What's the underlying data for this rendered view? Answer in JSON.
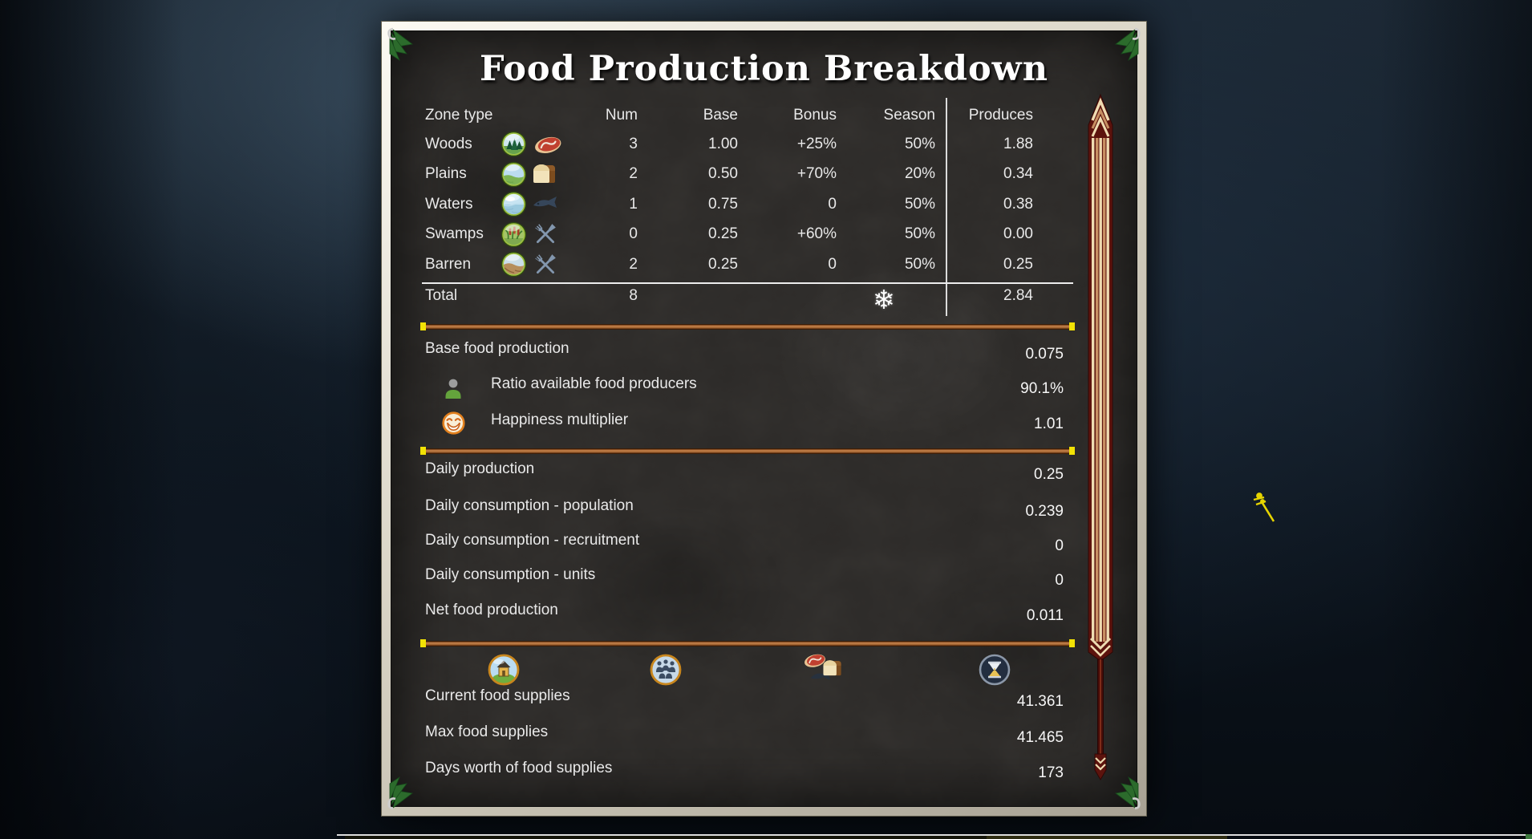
{
  "title": "Food Production Breakdown",
  "table": {
    "headers": {
      "zone": "Zone type",
      "num": "Num",
      "base": "Base",
      "bonus": "Bonus",
      "season": "Season",
      "produces": "Produces"
    },
    "rows": [
      {
        "zone": "Woods",
        "zone_icon": "woods-zone-icon",
        "food_icon": "meat-icon",
        "num": "3",
        "base": "1.00",
        "bonus": "+25%",
        "season": "50%",
        "produces": "1.88"
      },
      {
        "zone": "Plains",
        "zone_icon": "plains-zone-icon",
        "food_icon": "bread-icon",
        "num": "2",
        "base": "0.50",
        "bonus": "+70%",
        "season": "20%",
        "produces": "0.34"
      },
      {
        "zone": "Waters",
        "zone_icon": "waters-zone-icon",
        "food_icon": "fish-icon",
        "num": "1",
        "base": "0.75",
        "bonus": "0",
        "season": "50%",
        "produces": "0.38"
      },
      {
        "zone": "Swamps",
        "zone_icon": "swamps-zone-icon",
        "food_icon": "cutlery-icon",
        "num": "0",
        "base": "0.25",
        "bonus": "+60%",
        "season": "50%",
        "produces": "0.00"
      },
      {
        "zone": "Barren",
        "zone_icon": "barren-zone-icon",
        "food_icon": "cutlery-icon",
        "num": "2",
        "base": "0.25",
        "bonus": "0",
        "season": "50%",
        "produces": "0.25"
      }
    ],
    "total": {
      "label": "Total",
      "num": "8",
      "produces": "2.84",
      "season_glyph": "❄"
    }
  },
  "production": {
    "rows": [
      {
        "label": "Base food production",
        "value": "0.075",
        "icon": ""
      },
      {
        "label": "Ratio available food producers",
        "value": "90.1%",
        "icon": "person-icon"
      },
      {
        "label": "Happiness multiplier",
        "value": "1.01",
        "icon": "happiness-icon"
      }
    ]
  },
  "daily": {
    "rows": [
      {
        "label": "Daily production",
        "value": "0.25"
      },
      {
        "label": "Daily consumption - population",
        "value": "0.239"
      },
      {
        "label": "Daily consumption - recruitment",
        "value": "0"
      },
      {
        "label": "Daily consumption - units",
        "value": "0"
      },
      {
        "label": "Net food production",
        "value": "0.011"
      }
    ]
  },
  "supplies": {
    "icons": [
      "house-icon",
      "population-icon",
      "food-icon",
      "hourglass-icon"
    ],
    "rows": [
      {
        "label": "Current food supplies",
        "value": "41.361"
      },
      {
        "label": "Max food supplies",
        "value": "41.465"
      },
      {
        "label": "Days worth of food supplies",
        "value": "173"
      }
    ]
  },
  "colors": {
    "divider_bar": "#b5713a",
    "divider_cap": "#f2e205",
    "panel_bg": "#2c2a28",
    "frame_ivory": "#d8d3c4",
    "scroll_maroon": "#5c130d",
    "scroll_cream": "#eedcb2",
    "scroll_tan": "#c78f63",
    "text": "#e9e9e9"
  }
}
